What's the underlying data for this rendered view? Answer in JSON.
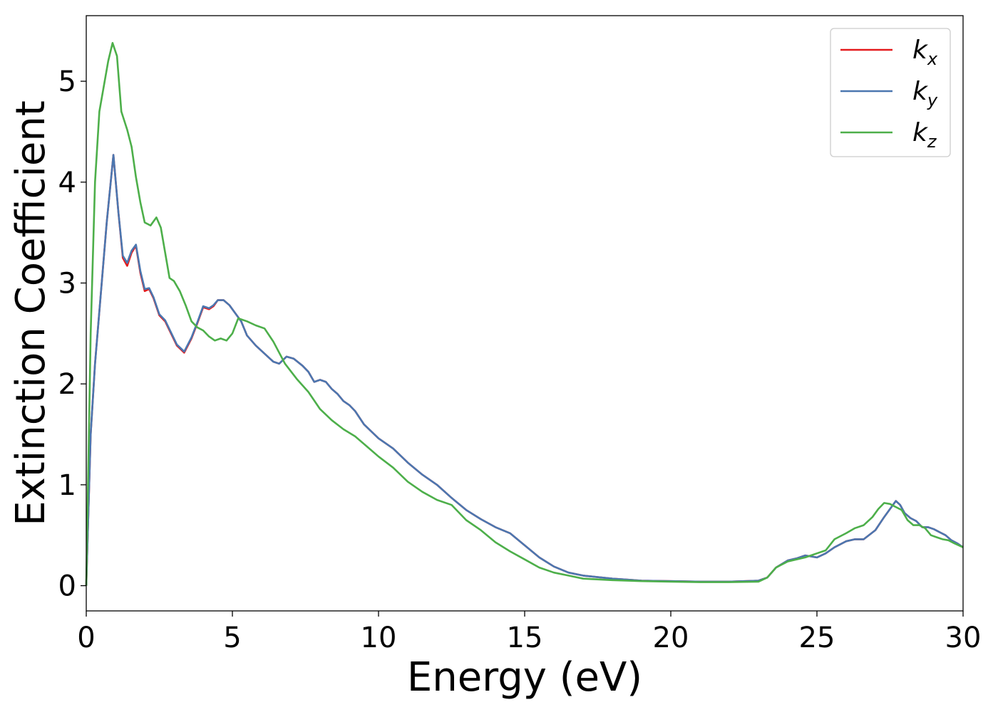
{
  "chart_data": {
    "type": "line",
    "title": "",
    "xlabel": "Energy (eV)",
    "ylabel": "Extinction Coefficient",
    "xlim": [
      0,
      30
    ],
    "ylim": [
      -0.25,
      5.65
    ],
    "xticks": [
      0,
      5,
      10,
      15,
      20,
      25,
      30
    ],
    "yticks": [
      0,
      1,
      2,
      3,
      4,
      5
    ],
    "grid": false,
    "legend_position": "top-right",
    "series": [
      {
        "name": "k",
        "subscript": "x",
        "color": "#e41a1c",
        "x": [
          0,
          0.15,
          0.3,
          0.5,
          0.7,
          0.93,
          1.1,
          1.25,
          1.4,
          1.55,
          1.7,
          1.85,
          2.0,
          2.15,
          2.3,
          2.5,
          2.7,
          2.9,
          3.1,
          3.35,
          3.6,
          3.8,
          4.0,
          4.2,
          4.35,
          4.5,
          4.7,
          4.9,
          5.1,
          5.3,
          5.5,
          5.8,
          6.1,
          6.4,
          6.6,
          6.85,
          7.1,
          7.4,
          7.6,
          7.8,
          8.0,
          8.2,
          8.4,
          8.6,
          8.8,
          9.0,
          9.2,
          9.5,
          10.0,
          10.5,
          11.0,
          11.5,
          12.0,
          12.5,
          13.0,
          13.5,
          14.0,
          14.5,
          15.0,
          15.5,
          16.0,
          16.5,
          17.0,
          18.0,
          19.0,
          20.0,
          21.0,
          22.0,
          23.0,
          23.3,
          23.6,
          24.0,
          24.3,
          24.6,
          25.0,
          25.3,
          25.6,
          26.0,
          26.3,
          26.6,
          27.0,
          27.3,
          27.55,
          27.7,
          27.85,
          28.0,
          28.2,
          28.4,
          28.6,
          28.8,
          29.0,
          29.2,
          29.4,
          29.6,
          29.8,
          30.0
        ],
        "values": [
          0,
          1.5,
          2.2,
          2.9,
          3.6,
          4.27,
          3.7,
          3.25,
          3.17,
          3.3,
          3.37,
          3.1,
          2.92,
          2.94,
          2.85,
          2.68,
          2.62,
          2.5,
          2.38,
          2.31,
          2.45,
          2.6,
          2.76,
          2.74,
          2.77,
          2.83,
          2.83,
          2.78,
          2.7,
          2.62,
          2.48,
          2.38,
          2.3,
          2.22,
          2.2,
          2.27,
          2.25,
          2.18,
          2.12,
          2.02,
          2.04,
          2.02,
          1.95,
          1.9,
          1.83,
          1.79,
          1.73,
          1.6,
          1.46,
          1.36,
          1.22,
          1.1,
          1.0,
          0.87,
          0.75,
          0.66,
          0.58,
          0.52,
          0.4,
          0.28,
          0.19,
          0.13,
          0.1,
          0.07,
          0.05,
          0.045,
          0.04,
          0.04,
          0.05,
          0.08,
          0.18,
          0.25,
          0.27,
          0.3,
          0.28,
          0.32,
          0.38,
          0.44,
          0.46,
          0.46,
          0.55,
          0.68,
          0.78,
          0.84,
          0.8,
          0.72,
          0.67,
          0.64,
          0.58,
          0.58,
          0.56,
          0.53,
          0.5,
          0.45,
          0.42,
          0.38
        ]
      },
      {
        "name": "k",
        "subscript": "y",
        "color": "#4b77b0",
        "x": [
          0,
          0.15,
          0.3,
          0.5,
          0.7,
          0.93,
          1.1,
          1.25,
          1.4,
          1.55,
          1.7,
          1.85,
          2.0,
          2.15,
          2.3,
          2.5,
          2.7,
          2.9,
          3.1,
          3.35,
          3.6,
          3.8,
          4.0,
          4.2,
          4.35,
          4.5,
          4.7,
          4.9,
          5.1,
          5.3,
          5.5,
          5.8,
          6.1,
          6.4,
          6.6,
          6.85,
          7.1,
          7.4,
          7.6,
          7.8,
          8.0,
          8.2,
          8.4,
          8.6,
          8.8,
          9.0,
          9.2,
          9.5,
          10.0,
          10.5,
          11.0,
          11.5,
          12.0,
          12.5,
          13.0,
          13.5,
          14.0,
          14.5,
          15.0,
          15.5,
          16.0,
          16.5,
          17.0,
          18.0,
          19.0,
          20.0,
          21.0,
          22.0,
          23.0,
          23.3,
          23.6,
          24.0,
          24.3,
          24.6,
          25.0,
          25.3,
          25.6,
          26.0,
          26.3,
          26.6,
          27.0,
          27.3,
          27.55,
          27.7,
          27.85,
          28.0,
          28.2,
          28.4,
          28.6,
          28.8,
          29.0,
          29.2,
          29.4,
          29.6,
          29.8,
          30.0
        ],
        "values": [
          0,
          1.5,
          2.2,
          2.9,
          3.6,
          4.27,
          3.7,
          3.27,
          3.2,
          3.32,
          3.38,
          3.12,
          2.94,
          2.95,
          2.86,
          2.69,
          2.63,
          2.51,
          2.39,
          2.32,
          2.46,
          2.61,
          2.77,
          2.75,
          2.78,
          2.83,
          2.83,
          2.78,
          2.7,
          2.62,
          2.48,
          2.38,
          2.3,
          2.22,
          2.2,
          2.27,
          2.25,
          2.18,
          2.12,
          2.02,
          2.04,
          2.02,
          1.95,
          1.9,
          1.83,
          1.79,
          1.73,
          1.6,
          1.46,
          1.36,
          1.22,
          1.1,
          1.0,
          0.87,
          0.75,
          0.66,
          0.58,
          0.52,
          0.4,
          0.28,
          0.19,
          0.13,
          0.1,
          0.07,
          0.05,
          0.045,
          0.04,
          0.04,
          0.05,
          0.08,
          0.18,
          0.25,
          0.27,
          0.3,
          0.28,
          0.32,
          0.38,
          0.44,
          0.46,
          0.46,
          0.55,
          0.68,
          0.78,
          0.84,
          0.8,
          0.72,
          0.67,
          0.64,
          0.58,
          0.58,
          0.56,
          0.53,
          0.5,
          0.45,
          0.42,
          0.38
        ]
      },
      {
        "name": "k",
        "subscript": "z",
        "color": "#4daf4a",
        "x": [
          0,
          0.15,
          0.3,
          0.45,
          0.6,
          0.75,
          0.9,
          1.05,
          1.2,
          1.4,
          1.55,
          1.7,
          1.85,
          2.0,
          2.2,
          2.4,
          2.55,
          2.7,
          2.85,
          3.0,
          3.2,
          3.4,
          3.6,
          3.8,
          4.0,
          4.2,
          4.4,
          4.6,
          4.8,
          5.0,
          5.2,
          5.5,
          5.8,
          6.1,
          6.4,
          6.8,
          7.2,
          7.6,
          8.0,
          8.4,
          8.8,
          9.2,
          9.6,
          10.0,
          10.5,
          11.0,
          11.5,
          12.0,
          12.5,
          13.0,
          13.5,
          14.0,
          14.5,
          15.0,
          15.5,
          16.0,
          16.5,
          17.0,
          18.0,
          19.0,
          20.0,
          21.0,
          22.0,
          23.0,
          23.3,
          23.6,
          24.0,
          24.3,
          24.6,
          25.0,
          25.3,
          25.6,
          26.0,
          26.3,
          26.6,
          26.9,
          27.1,
          27.3,
          27.5,
          27.7,
          27.9,
          28.1,
          28.3,
          28.5,
          28.7,
          28.9,
          29.1,
          29.3,
          29.5,
          29.7,
          30.0
        ],
        "values": [
          0,
          2.5,
          4.0,
          4.7,
          4.95,
          5.2,
          5.38,
          5.25,
          4.7,
          4.52,
          4.35,
          4.05,
          3.8,
          3.6,
          3.57,
          3.65,
          3.55,
          3.3,
          3.05,
          3.02,
          2.92,
          2.78,
          2.62,
          2.56,
          2.53,
          2.47,
          2.43,
          2.45,
          2.43,
          2.5,
          2.65,
          2.62,
          2.58,
          2.55,
          2.42,
          2.2,
          2.05,
          1.92,
          1.75,
          1.64,
          1.55,
          1.48,
          1.38,
          1.28,
          1.17,
          1.03,
          0.93,
          0.85,
          0.8,
          0.65,
          0.55,
          0.43,
          0.34,
          0.26,
          0.18,
          0.13,
          0.1,
          0.07,
          0.055,
          0.045,
          0.04,
          0.035,
          0.035,
          0.04,
          0.08,
          0.18,
          0.24,
          0.26,
          0.28,
          0.32,
          0.35,
          0.46,
          0.52,
          0.57,
          0.6,
          0.68,
          0.76,
          0.82,
          0.81,
          0.78,
          0.75,
          0.65,
          0.6,
          0.6,
          0.57,
          0.5,
          0.48,
          0.46,
          0.45,
          0.42,
          0.38
        ]
      }
    ]
  }
}
